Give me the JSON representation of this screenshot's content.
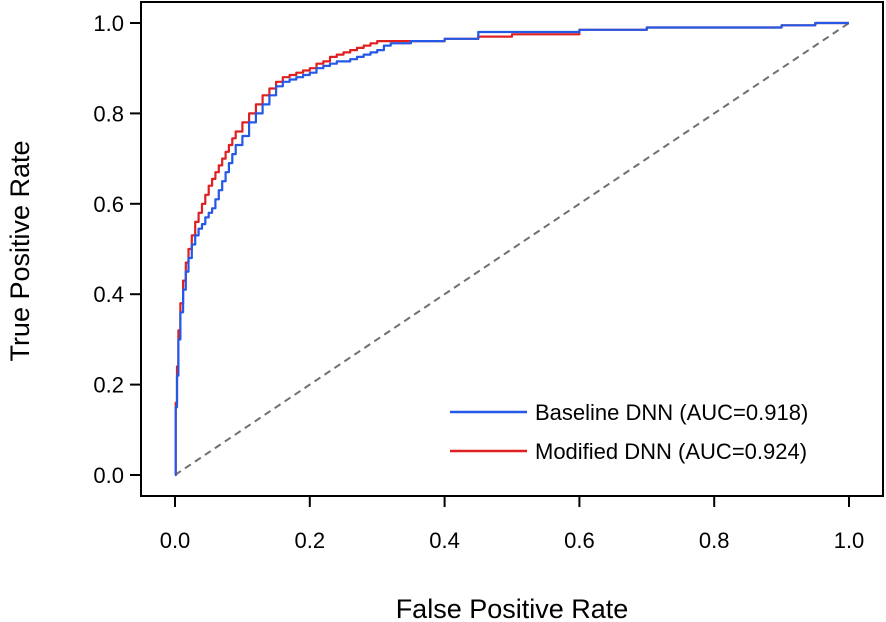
{
  "chart_data": {
    "type": "line",
    "title": "",
    "xlabel": "False Positive Rate",
    "ylabel": "True Positive Rate",
    "xlim": [
      0.0,
      1.0
    ],
    "ylim": [
      0.0,
      1.0
    ],
    "xticks": [
      "0.0",
      "0.2",
      "0.4",
      "0.6",
      "0.8",
      "1.0"
    ],
    "yticks": [
      "0.0",
      "0.2",
      "0.4",
      "0.6",
      "0.8",
      "1.0"
    ],
    "grid": false,
    "legend_position": "bottom-right",
    "diagonal": {
      "style": "dashed",
      "color": "#707070",
      "x": [
        0.0,
        1.0
      ],
      "y": [
        0.0,
        1.0
      ]
    },
    "series": [
      {
        "name": "Baseline DNN (AUC=0.918)",
        "color": "#2458e6",
        "x": [
          0,
          0.001,
          0.003,
          0.005,
          0.008,
          0.012,
          0.016,
          0.02,
          0.025,
          0.03,
          0.035,
          0.04,
          0.045,
          0.05,
          0.055,
          0.06,
          0.065,
          0.07,
          0.075,
          0.08,
          0.085,
          0.09,
          0.1,
          0.11,
          0.12,
          0.13,
          0.14,
          0.15,
          0.16,
          0.17,
          0.18,
          0.19,
          0.2,
          0.21,
          0.22,
          0.23,
          0.24,
          0.25,
          0.26,
          0.27,
          0.28,
          0.29,
          0.3,
          0.31,
          0.32,
          0.35,
          0.4,
          0.45,
          0.5,
          0.6,
          0.7,
          0.8,
          0.9,
          0.95,
          1.0
        ],
        "y": [
          0,
          0.15,
          0.22,
          0.3,
          0.36,
          0.41,
          0.45,
          0.48,
          0.51,
          0.53,
          0.545,
          0.555,
          0.57,
          0.58,
          0.59,
          0.61,
          0.63,
          0.65,
          0.67,
          0.69,
          0.71,
          0.73,
          0.75,
          0.78,
          0.8,
          0.82,
          0.84,
          0.86,
          0.87,
          0.875,
          0.88,
          0.885,
          0.89,
          0.9,
          0.905,
          0.91,
          0.915,
          0.915,
          0.92,
          0.925,
          0.93,
          0.935,
          0.94,
          0.95,
          0.955,
          0.96,
          0.965,
          0.98,
          0.98,
          0.985,
          0.99,
          0.99,
          0.995,
          1.0,
          1.0
        ]
      },
      {
        "name": "Modified DNN (AUC=0.924)",
        "color": "#e02020",
        "x": [
          0,
          0.001,
          0.003,
          0.005,
          0.008,
          0.012,
          0.016,
          0.02,
          0.025,
          0.03,
          0.035,
          0.04,
          0.045,
          0.05,
          0.055,
          0.06,
          0.065,
          0.07,
          0.075,
          0.08,
          0.085,
          0.09,
          0.1,
          0.11,
          0.12,
          0.13,
          0.14,
          0.15,
          0.16,
          0.17,
          0.18,
          0.19,
          0.2,
          0.21,
          0.22,
          0.23,
          0.24,
          0.25,
          0.26,
          0.27,
          0.28,
          0.29,
          0.3,
          0.32,
          0.35,
          0.4,
          0.45,
          0.5,
          0.6,
          0.7,
          0.8,
          0.9,
          0.95,
          1.0
        ],
        "y": [
          0,
          0.16,
          0.24,
          0.32,
          0.38,
          0.43,
          0.47,
          0.5,
          0.53,
          0.56,
          0.58,
          0.6,
          0.62,
          0.64,
          0.655,
          0.67,
          0.685,
          0.7,
          0.715,
          0.73,
          0.745,
          0.76,
          0.78,
          0.8,
          0.82,
          0.84,
          0.855,
          0.87,
          0.88,
          0.885,
          0.89,
          0.895,
          0.9,
          0.91,
          0.915,
          0.925,
          0.93,
          0.935,
          0.94,
          0.945,
          0.95,
          0.955,
          0.96,
          0.96,
          0.96,
          0.965,
          0.97,
          0.975,
          0.985,
          0.99,
          0.99,
          0.995,
          1.0,
          1.0
        ]
      }
    ]
  }
}
